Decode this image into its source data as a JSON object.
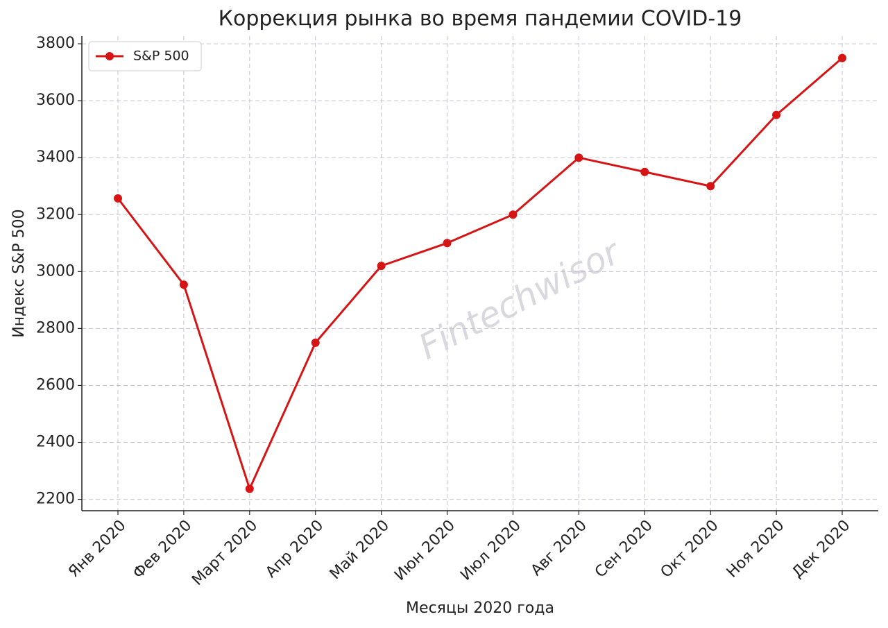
{
  "chart_data": {
    "type": "line",
    "title": "Коррекция рынка во время пандемии COVID-19",
    "x_label": "Месяцы 2020 года",
    "y_label": "Индекс S&P 500",
    "watermark": "Fintechwisor",
    "categories": [
      "Янв 2020",
      "Фев 2020",
      "Март 2020",
      "Апр 2020",
      "Май 2020",
      "Июн 2020",
      "Июл 2020",
      "Авг 2020",
      "Сен 2020",
      "Окт 2020",
      "Ноя 2020",
      "Дек 2020"
    ],
    "series": [
      {
        "name": "S&P 500",
        "color": "#d71414",
        "values": [
          3257,
          2954,
          2237,
          2750,
          3020,
          3100,
          3200,
          3400,
          3350,
          3300,
          3550,
          3750
        ]
      }
    ],
    "ylim": [
      2160,
      3827
    ],
    "yticks": [
      2200,
      2400,
      2600,
      2800,
      3000,
      3200,
      3400,
      3600,
      3800
    ],
    "grid": true,
    "legend": "upper left"
  }
}
